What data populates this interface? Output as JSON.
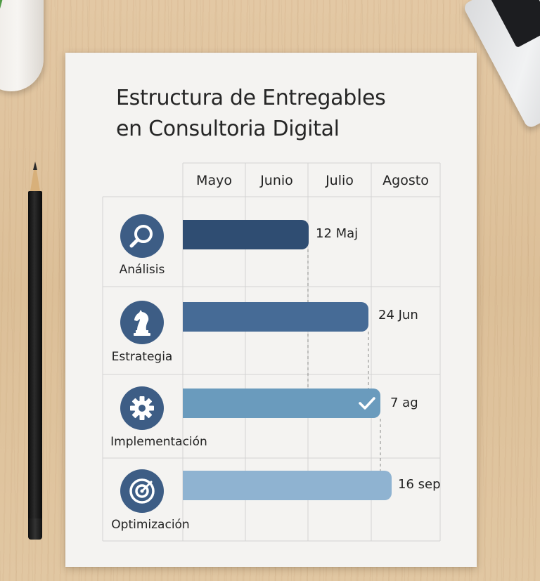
{
  "title": {
    "line1": "Estructura de Entregables",
    "line2": "en Consultoria Digital"
  },
  "months": [
    "Mayo",
    "Junio",
    "Julio",
    "Agosto"
  ],
  "rows": [
    {
      "label": "Análisis",
      "icon": "magnifier-icon",
      "date": "12 Maj",
      "color": "#2f4d72"
    },
    {
      "label": "Estrategia",
      "icon": "chess-knight-icon",
      "date": "24 Jun",
      "color": "#466b96"
    },
    {
      "label": "Implementación",
      "icon": "gear-icon",
      "date": "7 ag",
      "color": "#6a9bbd",
      "completed": true
    },
    {
      "label": "Optimización",
      "icon": "target-icon",
      "date": "16 sep",
      "color": "#8fb3d1"
    }
  ],
  "colors": {
    "icon_circle": "#3d5d85",
    "grid": "#d3d3d3"
  }
}
